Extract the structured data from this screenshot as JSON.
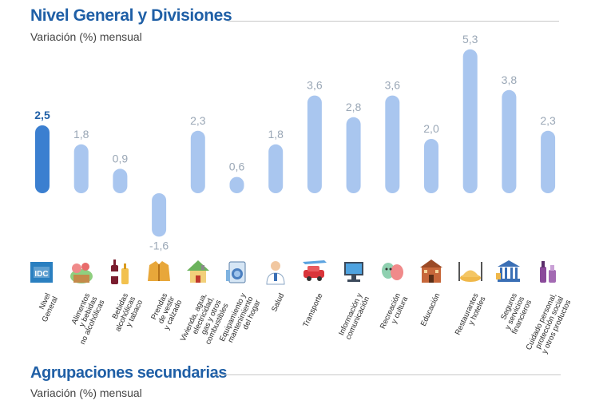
{
  "header": {
    "title": "Nivel General y Divisiones",
    "subtitle": "Variación (%) mensual"
  },
  "section2": {
    "title": "Agrupaciones secundarias",
    "subtitle": "Variación (%) mensual"
  },
  "colors": {
    "main_bar": "#3b7fd0",
    "bar": "#a9c6ef",
    "title": "#1f5fa6"
  },
  "chart_data": {
    "type": "bar",
    "title": "Nivel General y Divisiones",
    "ylabel": "Variación (%) mensual",
    "ylim": [
      -2,
      6
    ],
    "categories": [
      "Nivel\nGeneral",
      "Alimentos\ny bebidas\nno alcohólicas",
      "Bebidas\nalcohólicas\ny tabaco",
      "Prendas\nde vestir\ny calzado",
      "Vivienda, agua,\nelectricidad,\ngas y otros\ncombustibles",
      "Equipamiento y\nmantenimiento\ndel hogar",
      "Salud",
      "Transporte",
      "Información y\ncomunicación",
      "Recreación\ny cultura",
      "Educación",
      "Restaurantes\ny hoteles",
      "Seguros\ny servicios\nfinancieros",
      "Cuidado personal,\nprotección social\ny otros productos"
    ],
    "values": [
      2.5,
      1.8,
      0.9,
      -1.6,
      2.3,
      0.6,
      1.8,
      3.6,
      2.8,
      3.6,
      2.0,
      5.3,
      3.8,
      2.3
    ],
    "value_labels": [
      "2,5",
      "1,8",
      "0,9",
      "-1,6",
      "2,3",
      "0,6",
      "1,8",
      "3,6",
      "2,8",
      "3,6",
      "2,0",
      "5,3",
      "3,8",
      "2,3"
    ],
    "icons": [
      "indec-logo-icon",
      "food-basket-icon",
      "bottles-icon",
      "jacket-icon",
      "house-icon",
      "washing-machine-icon",
      "doctor-icon",
      "vehicles-icon",
      "computer-icon",
      "theater-masks-icon",
      "school-icon",
      "dish-cutlery-icon",
      "bank-icon",
      "personal-care-icon"
    ]
  }
}
